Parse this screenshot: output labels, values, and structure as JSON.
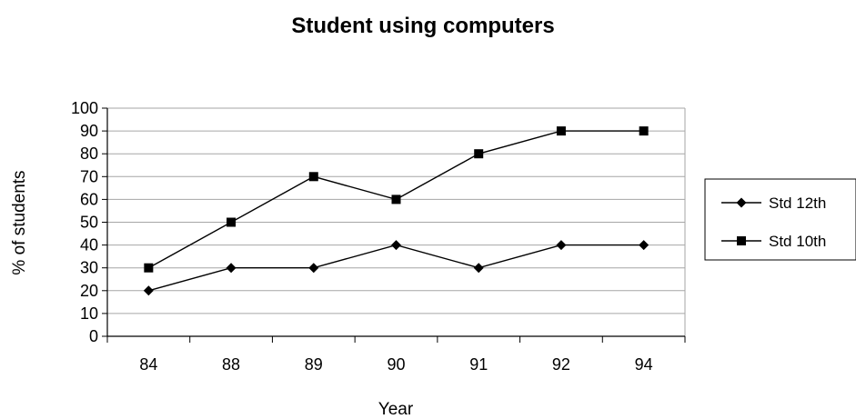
{
  "chart_data": {
    "type": "line",
    "title": "Student using computers",
    "xlabel": "Year",
    "ylabel": "% of students",
    "categories": [
      "84",
      "88",
      "89",
      "90",
      "91",
      "92",
      "94"
    ],
    "ylim": [
      0,
      100
    ],
    "yticks": [
      0,
      10,
      20,
      30,
      40,
      50,
      60,
      70,
      80,
      90,
      100
    ],
    "grid": true,
    "legend": "right",
    "series": [
      {
        "name": "Std 12th",
        "marker": "diamond",
        "color": "#000000",
        "values": [
          20,
          30,
          30,
          40,
          30,
          40,
          40
        ]
      },
      {
        "name": "Std 10th",
        "marker": "square",
        "color": "#000000",
        "values": [
          30,
          50,
          70,
          60,
          80,
          90,
          90
        ]
      }
    ]
  }
}
